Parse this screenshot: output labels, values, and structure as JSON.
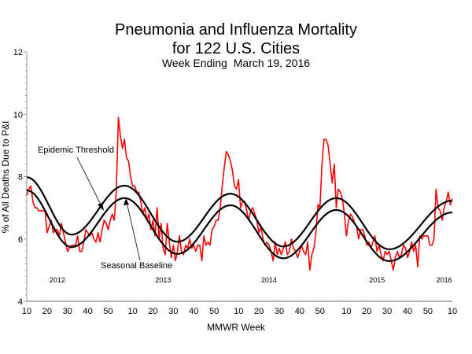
{
  "chart_data": {
    "type": "line",
    "title": "Pneumonia and Influenza Mortality",
    "title_line2": "for 122 U.S. Cities",
    "subtitle": "Week Ending  March 19, 2016",
    "xlabel": "MMWR Week",
    "ylabel": "% of All Deaths Due to P&I",
    "ylim": [
      4,
      12
    ],
    "yticks": [
      "4",
      "6",
      "8",
      "10",
      "12"
    ],
    "xrange": [
      "2012-10",
      "2016-10"
    ],
    "xtick_weeks": [
      10,
      20,
      30,
      40,
      50
    ],
    "year_labels": [
      "2012",
      "2013",
      "2014",
      "2015",
      "2016"
    ],
    "grid": false,
    "colors": {
      "pi": "#ff0000",
      "baseline": "#000000",
      "threshold": "#000000"
    },
    "annotations": {
      "threshold": "Epidemic Threshold",
      "baseline": "Seasonal Baseline"
    },
    "series": [
      {
        "id": "pi",
        "start": "2012-10",
        "values": [
          7.4,
          7.6,
          7.7,
          7.2,
          7.0,
          7.0,
          6.9,
          6.9,
          6.9,
          6.9,
          6.2,
          6.4,
          6.6,
          6.2,
          6.3,
          6.3,
          6.1,
          6.5,
          6.2,
          5.9,
          5.6,
          5.7,
          5.8,
          5.8,
          5.8,
          6.1,
          5.6,
          5.6,
          5.9,
          6.3,
          6.2,
          6.1,
          6.2,
          6.0,
          5.9,
          6.2,
          5.9,
          6.3,
          6.6,
          6.5,
          6.3,
          6.6,
          6.8,
          6.6,
          7.6,
          9.9,
          9.3,
          8.9,
          9.2,
          8.6,
          8.5,
          8.0,
          7.7,
          7.7,
          7.5,
          7.5,
          7.2,
          6.8,
          7.0,
          6.6,
          6.8,
          6.3,
          6.6,
          6.1,
          7.0,
          6.0,
          6.5,
          5.7,
          5.5,
          6.5,
          5.9,
          5.4,
          5.8,
          5.3,
          5.6,
          6.1,
          5.6,
          5.5,
          5.8,
          5.7,
          6.0,
          5.7,
          5.8,
          5.6,
          5.8,
          5.8,
          5.3,
          6.1,
          5.8,
          5.9,
          5.8,
          6.3,
          6.4,
          6.6,
          6.6,
          7.0,
          7.7,
          8.3,
          8.8,
          8.7,
          8.5,
          8.2,
          7.7,
          7.6,
          7.9,
          7.0,
          7.2,
          7.2,
          6.9,
          6.6,
          6.9,
          7.0,
          6.8,
          6.6,
          6.2,
          6.4,
          6.0,
          5.8,
          5.9,
          5.8,
          5.6,
          5.3,
          5.9,
          5.5,
          5.7,
          5.5,
          5.7,
          5.9,
          5.5,
          5.6,
          6.0,
          5.7,
          5.6,
          5.4,
          5.6,
          5.8,
          5.6,
          5.5,
          5.9,
          5.0,
          5.5,
          5.7,
          6.2,
          7.1,
          7.0,
          8.4,
          9.2,
          9.2,
          9.0,
          8.4,
          7.8,
          8.4,
          7.0,
          7.6,
          7.5,
          7.3,
          6.8,
          6.1,
          6.6,
          6.8,
          6.7,
          6.5,
          6.4,
          6.0,
          6.3,
          6.3,
          6.1,
          5.8,
          5.9,
          5.7,
          5.9,
          6.1,
          5.6,
          5.8,
          5.5,
          5.3,
          5.6,
          5.5,
          5.6,
          5.3,
          5.0,
          5.4,
          5.6,
          5.4,
          5.5,
          5.8,
          5.7,
          5.4,
          5.6,
          5.9,
          5.6,
          5.8,
          5.1,
          6.1,
          6.0,
          6.1,
          6.1,
          6.1,
          5.8,
          5.8,
          6.0,
          7.6,
          7.0,
          6.9,
          6.6,
          7.0,
          7.2,
          7.5,
          7.1,
          7.3
        ]
      },
      {
        "id": "threshold",
        "points": [
          [
            "2012-10",
            7.98
          ],
          [
            "2012-32",
            6.14
          ],
          [
            "2013-06",
            7.71
          ],
          [
            "2013-32",
            5.91
          ],
          [
            "2014-06",
            7.45
          ],
          [
            "2014-32",
            5.76
          ],
          [
            "2015-05",
            7.31
          ],
          [
            "2015-31",
            5.67
          ],
          [
            "2016-10",
            7.23
          ]
        ]
      },
      {
        "id": "baseline",
        "points": [
          [
            "2012-10",
            7.56
          ],
          [
            "2012-32",
            5.74
          ],
          [
            "2013-06",
            7.31
          ],
          [
            "2013-32",
            5.52
          ],
          [
            "2014-06",
            7.08
          ],
          [
            "2014-32",
            5.38
          ],
          [
            "2015-05",
            6.93
          ],
          [
            "2015-31",
            5.29
          ],
          [
            "2016-10",
            6.85
          ]
        ]
      }
    ]
  }
}
